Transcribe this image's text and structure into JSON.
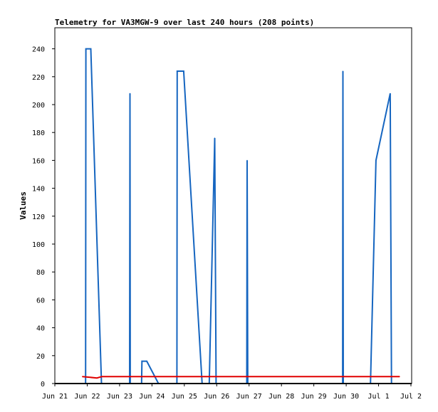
{
  "chart_data": {
    "type": "line",
    "title": "Telemetry for VA3MGW-9 over last 240 hours (208 points)",
    "xlabel": "",
    "ylabel": "Values",
    "xlim": [
      0,
      11
    ],
    "ylim": [
      0,
      255
    ],
    "x_ticks": [
      {
        "pos": 0,
        "label": "Jun 21"
      },
      {
        "pos": 1,
        "label": "Jun 22"
      },
      {
        "pos": 2,
        "label": "Jun 23"
      },
      {
        "pos": 3,
        "label": "Jun 24"
      },
      {
        "pos": 4,
        "label": "Jun 25"
      },
      {
        "pos": 5,
        "label": "Jun 26"
      },
      {
        "pos": 6,
        "label": "Jun 27"
      },
      {
        "pos": 7,
        "label": "Jun 28"
      },
      {
        "pos": 8,
        "label": "Jun 29"
      },
      {
        "pos": 9,
        "label": "Jun 30"
      },
      {
        "pos": 10,
        "label": "Jul 1"
      },
      {
        "pos": 11,
        "label": "Jul 2"
      }
    ],
    "y_ticks": [
      0,
      20,
      40,
      60,
      80,
      100,
      120,
      140,
      160,
      180,
      200,
      220,
      240
    ],
    "grid": false,
    "series": [
      {
        "color": "#1565c0",
        "points": [
          [
            0.85,
            0
          ],
          [
            0.95,
            0
          ],
          [
            0.96,
            240
          ],
          [
            1.11,
            240
          ],
          [
            1.44,
            0
          ],
          [
            2.31,
            0
          ],
          [
            2.32,
            208
          ],
          [
            2.33,
            0
          ],
          [
            2.68,
            0
          ],
          [
            2.69,
            16
          ],
          [
            2.84,
            16
          ],
          [
            3.2,
            0
          ],
          [
            3.77,
            0
          ],
          [
            3.78,
            224
          ],
          [
            3.98,
            224
          ],
          [
            4.55,
            0
          ],
          [
            4.77,
            0
          ],
          [
            4.94,
            176
          ],
          [
            4.98,
            0
          ],
          [
            5.93,
            0
          ],
          [
            5.94,
            160
          ],
          [
            5.96,
            0
          ],
          [
            8.89,
            0
          ],
          [
            8.9,
            224
          ],
          [
            8.91,
            0
          ],
          [
            9.75,
            0
          ],
          [
            9.92,
            160
          ],
          [
            10.36,
            208
          ],
          [
            10.4,
            0
          ],
          [
            10.65,
            0
          ]
        ]
      },
      {
        "color": "#e00000",
        "points": [
          [
            0.85,
            5
          ],
          [
            1.3,
            4
          ],
          [
            1.45,
            5
          ],
          [
            10.65,
            5
          ]
        ]
      }
    ]
  }
}
